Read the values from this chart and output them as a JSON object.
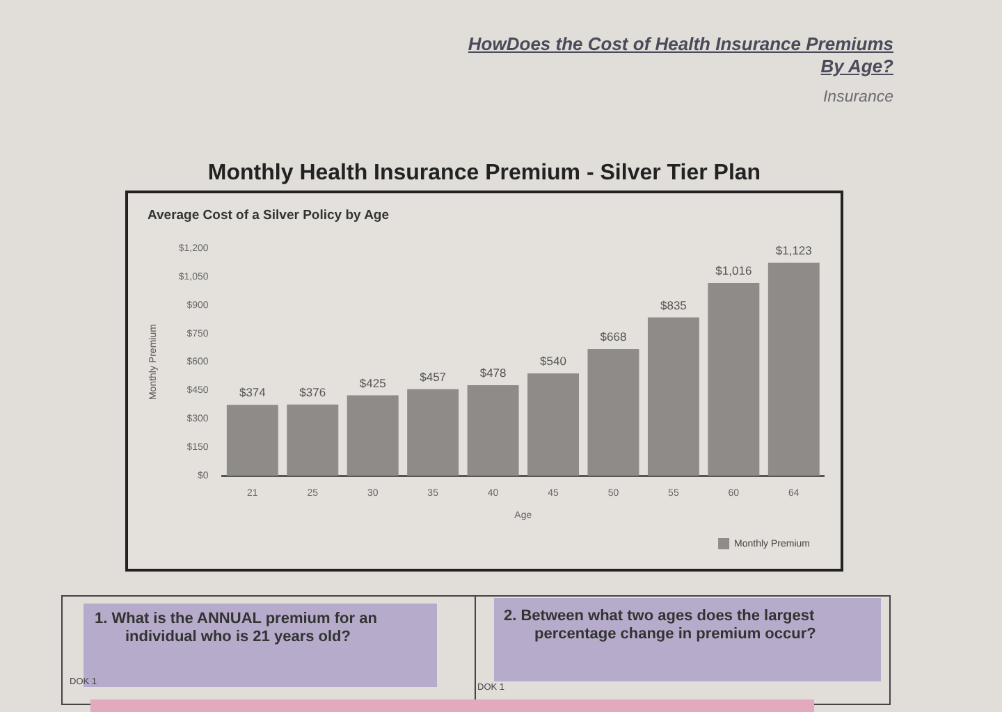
{
  "chart_data": {
    "type": "bar",
    "title": "Monthly Health Insurance Premium - Silver Tier Plan",
    "subtitle": "Average Cost of a Silver Policy by Age",
    "xlabel": "Age",
    "ylabel": "Monthly Premium",
    "categories": [
      "21",
      "25",
      "30",
      "35",
      "40",
      "45",
      "50",
      "55",
      "60",
      "64"
    ],
    "series": [
      {
        "name": "Monthly Premium",
        "color": "#8e8b88",
        "values": [
          374,
          376,
          425,
          457,
          478,
          540,
          668,
          835,
          1016,
          1123
        ],
        "value_labels": [
          "$374",
          "$376",
          "$425",
          "$457",
          "$478",
          "$540",
          "$668",
          "$835",
          "$1,016",
          "$1,123"
        ]
      }
    ],
    "ylim": [
      0,
      1200
    ],
    "yticks": [
      {
        "value": 0,
        "label": "$0"
      },
      {
        "value": 150,
        "label": "$150"
      },
      {
        "value": 300,
        "label": "$300"
      },
      {
        "value": 450,
        "label": "$450"
      },
      {
        "value": 600,
        "label": "$600"
      },
      {
        "value": 750,
        "label": "$750"
      },
      {
        "value": 900,
        "label": "$900"
      },
      {
        "value": 1050,
        "label": "$1,050"
      },
      {
        "value": 1200,
        "label": "$1,200"
      }
    ],
    "grid": false,
    "legend": "bottom right",
    "annotations": [
      "HowDoes the Cost of Health Insurance Premiums By Age?",
      "Insurance",
      "1. What is the ANNUAL premium for an individual who is 21 years old?",
      "2. Between what two ages does the largest percentage change in premium occur?",
      "DOK 1",
      "DOK 1"
    ]
  }
}
